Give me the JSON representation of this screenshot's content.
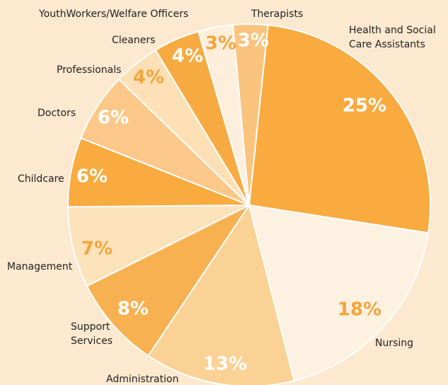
{
  "chart_data": {
    "type": "pie",
    "categories": [
      "Health and Social Care Assistants",
      "Nursing",
      "Administration",
      "Support Services",
      "Management",
      "Childcare",
      "Doctors",
      "Professionals",
      "Cleaners",
      "YouthWorkers/Welfare Officers",
      "Therapists"
    ],
    "values": [
      25,
      18,
      13,
      8,
      7,
      6,
      6,
      4,
      4,
      3,
      3
    ],
    "value_labels": [
      "25%",
      "18%",
      "13%",
      "8%",
      "7%",
      "6%",
      "6%",
      "4%",
      "4%",
      "3%",
      "3%"
    ],
    "colors": [
      "#f9ab3f",
      "#fdf1e2",
      "#fbd295",
      "#f8b150",
      "#fde3bb",
      "#f9ab3f",
      "#fcc88a",
      "#fde0b5",
      "#f8aa42",
      "#fdefdc",
      "#fbc47e"
    ]
  }
}
